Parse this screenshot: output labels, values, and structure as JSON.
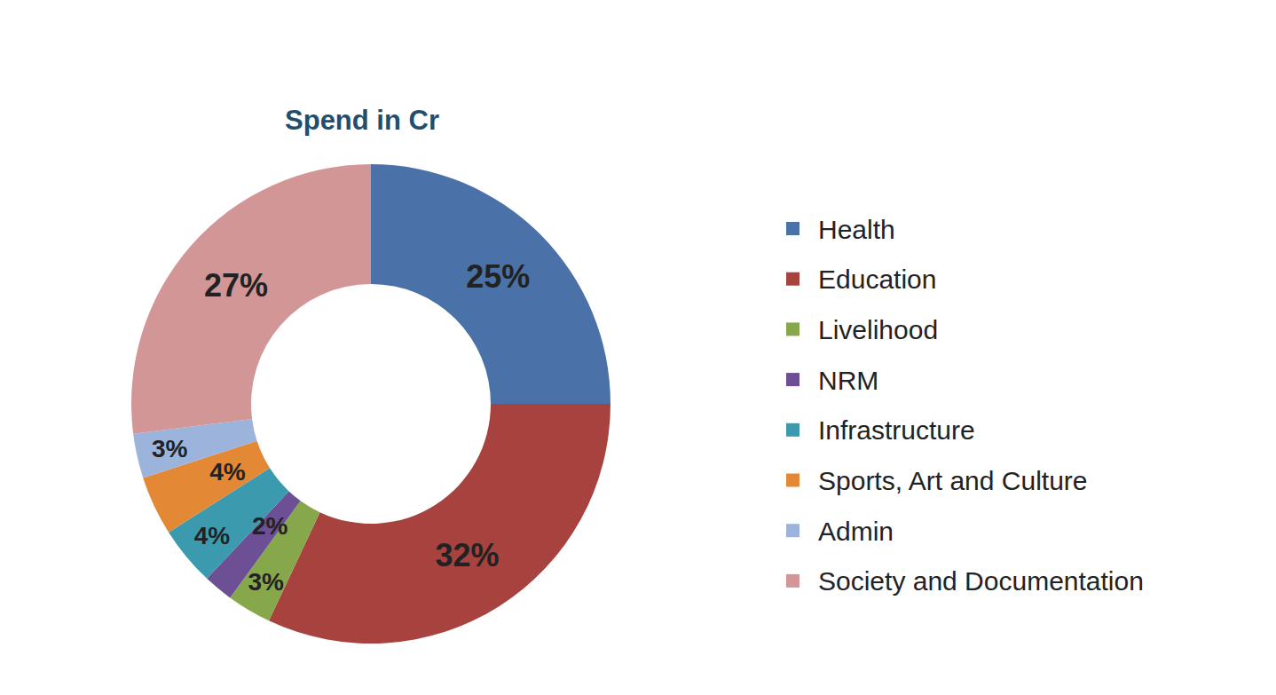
{
  "chart_data": {
    "type": "donut",
    "title": "Spend in Cr",
    "categories": [
      "Health",
      "Education",
      "Livelihood",
      "NRM",
      "Infrastructure",
      "Sports, Art and Culture",
      "Admin",
      "Society and Documentation"
    ],
    "values": [
      25,
      32,
      3,
      2,
      4,
      4,
      3,
      27
    ],
    "value_labels": [
      "25%",
      "32%",
      "3%",
      "2%",
      "4%",
      "4%",
      "3%",
      "27%"
    ],
    "colors": [
      "#4a72a8",
      "#a8423f",
      "#87a84a",
      "#6c4f95",
      "#3c9aae",
      "#e38936",
      "#9cb3db",
      "#d39696"
    ],
    "data_labels": true,
    "legend": "right"
  }
}
